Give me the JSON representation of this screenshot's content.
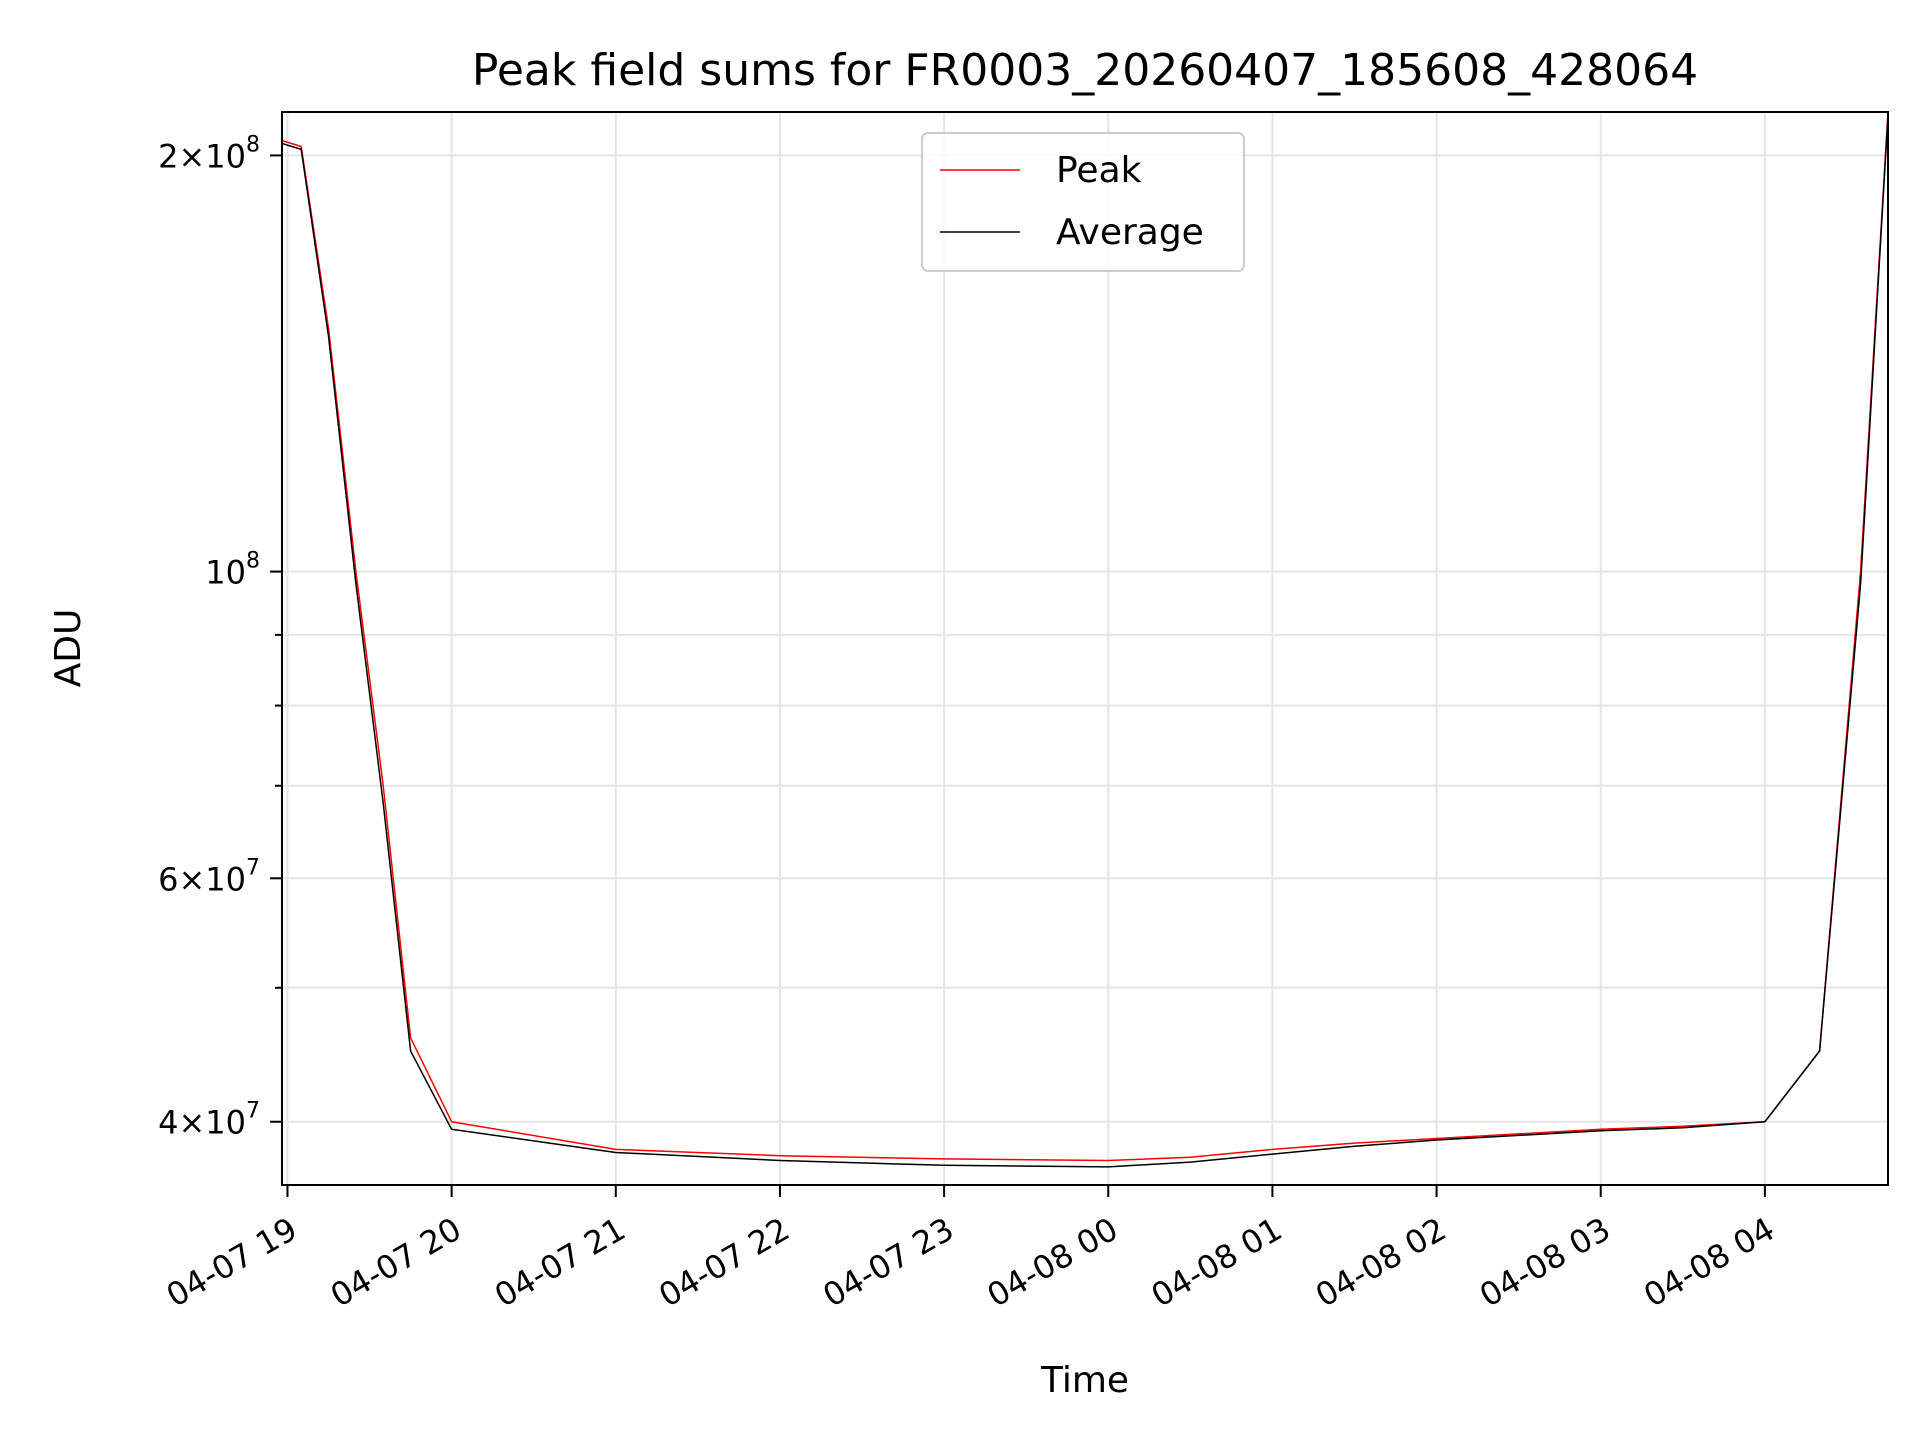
{
  "chart_data": {
    "type": "line",
    "title": "Peak field sums for FR0003_20260407_185608_428064",
    "xlabel": "Time",
    "ylabel": "ADU",
    "yscale": "log",
    "ylim": [
      36000000,
      215000000
    ],
    "xlim": [
      "2026-04-07 18:58",
      "2026-04-08 04:45"
    ],
    "x_ticks": [
      {
        "value": "2026-04-07 19:00",
        "label": "04-07 19"
      },
      {
        "value": "2026-04-07 20:00",
        "label": "04-07 20"
      },
      {
        "value": "2026-04-07 21:00",
        "label": "04-07 21"
      },
      {
        "value": "2026-04-07 22:00",
        "label": "04-07 22"
      },
      {
        "value": "2026-04-07 23:00",
        "label": "04-07 23"
      },
      {
        "value": "2026-04-08 00:00",
        "label": "04-08 00"
      },
      {
        "value": "2026-04-08 01:00",
        "label": "04-08 01"
      },
      {
        "value": "2026-04-08 02:00",
        "label": "04-08 02"
      },
      {
        "value": "2026-04-08 03:00",
        "label": "04-08 03"
      },
      {
        "value": "2026-04-08 04:00",
        "label": "04-08 04"
      }
    ],
    "y_major_ticks": [
      {
        "value": 40000000,
        "mantissa": "4",
        "exponent": "7"
      },
      {
        "value": 60000000,
        "mantissa": "6",
        "exponent": "7"
      },
      {
        "value": 100000000,
        "mantissa": "",
        "exponent": "8"
      },
      {
        "value": 200000000,
        "mantissa": "2",
        "exponent": "8"
      }
    ],
    "y_minor_ticks": [
      50000000,
      70000000,
      80000000,
      90000000
    ],
    "times_symbol": "×",
    "base_label": "10",
    "grid": true,
    "legend_position": "top-center",
    "series": [
      {
        "name": "Peak",
        "color": "#ff0000",
        "x": [
          "2026-04-07 18:58",
          "2026-04-07 19:05",
          "2026-04-07 19:15",
          "2026-04-07 19:25",
          "2026-04-07 19:35",
          "2026-04-07 19:45",
          "2026-04-07 20:00",
          "2026-04-07 21:00",
          "2026-04-07 22:00",
          "2026-04-07 23:00",
          "2026-04-08 00:00",
          "2026-04-08 00:30",
          "2026-04-08 01:00",
          "2026-04-08 01:30",
          "2026-04-08 02:00",
          "2026-04-08 02:30",
          "2026-04-08 03:00",
          "2026-04-08 03:30",
          "2026-04-08 04:00",
          "2026-04-08 04:20",
          "2026-04-08 04:35",
          "2026-04-08 04:45"
        ],
        "values": [
          205000000,
          203000000,
          150000000,
          100000000,
          70000000,
          46000000,
          40000000,
          38200000,
          37800000,
          37600000,
          37500000,
          37700000,
          38200000,
          38600000,
          38900000,
          39200000,
          39500000,
          39700000,
          40000000,
          45000000,
          100000000,
          215000000
        ]
      },
      {
        "name": "Average",
        "color": "#000000",
        "x": [
          "2026-04-07 18:58",
          "2026-04-07 19:05",
          "2026-04-07 19:15",
          "2026-04-07 19:25",
          "2026-04-07 19:35",
          "2026-04-07 19:45",
          "2026-04-07 20:00",
          "2026-04-07 21:00",
          "2026-04-07 22:00",
          "2026-04-07 23:00",
          "2026-04-08 00:00",
          "2026-04-08 00:30",
          "2026-04-08 01:00",
          "2026-04-08 01:30",
          "2026-04-08 02:00",
          "2026-04-08 02:30",
          "2026-04-08 03:00",
          "2026-04-08 03:30",
          "2026-04-08 04:00",
          "2026-04-08 04:20",
          "2026-04-08 04:35",
          "2026-04-08 04:45"
        ],
        "values": [
          204000000,
          202000000,
          148000000,
          98000000,
          68000000,
          45000000,
          39500000,
          38000000,
          37500000,
          37200000,
          37100000,
          37400000,
          37900000,
          38400000,
          38800000,
          39100000,
          39400000,
          39600000,
          40000000,
          45000000,
          98000000,
          214000000
        ]
      }
    ]
  }
}
